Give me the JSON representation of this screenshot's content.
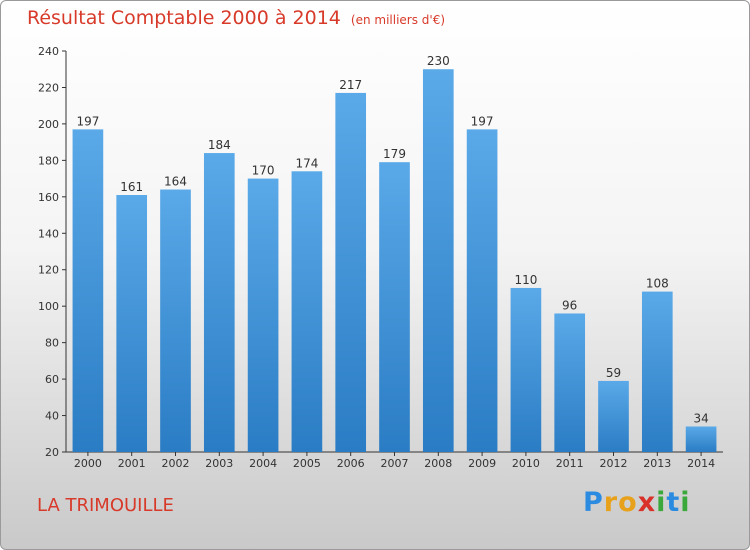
{
  "chart_data": {
    "type": "bar",
    "title": "Résultat Comptable 2000 à 2014",
    "subtitle": "(en milliers d'€)",
    "categories": [
      "2000",
      "2001",
      "2002",
      "2003",
      "2004",
      "2005",
      "2006",
      "2007",
      "2008",
      "2009",
      "2010",
      "2011",
      "2012",
      "2013",
      "2014"
    ],
    "values": [
      197,
      161,
      164,
      184,
      170,
      174,
      217,
      179,
      230,
      197,
      110,
      96,
      59,
      108,
      34
    ],
    "ylim": [
      20,
      240
    ],
    "yticks": [
      20,
      40,
      60,
      80,
      100,
      120,
      140,
      160,
      180,
      200,
      220,
      240
    ],
    "xlabel": "",
    "ylabel": "",
    "grid": false,
    "bar_color_top": "#5aa9e8",
    "bar_color_bottom": "#2a7cc4"
  },
  "location": "LA TRIMOUILLE",
  "logo": {
    "text": "Proxiti",
    "letters": [
      "P",
      "r",
      "o",
      "x",
      "i",
      "t",
      "i"
    ],
    "colors": [
      "#2b8be0",
      "#e8a11a",
      "#e8a11a",
      "#d9302a",
      "#3aa83a",
      "#2b8be0",
      "#3aa83a"
    ]
  },
  "colors": {
    "accent": "#d83a2a",
    "axis": "#333333"
  }
}
